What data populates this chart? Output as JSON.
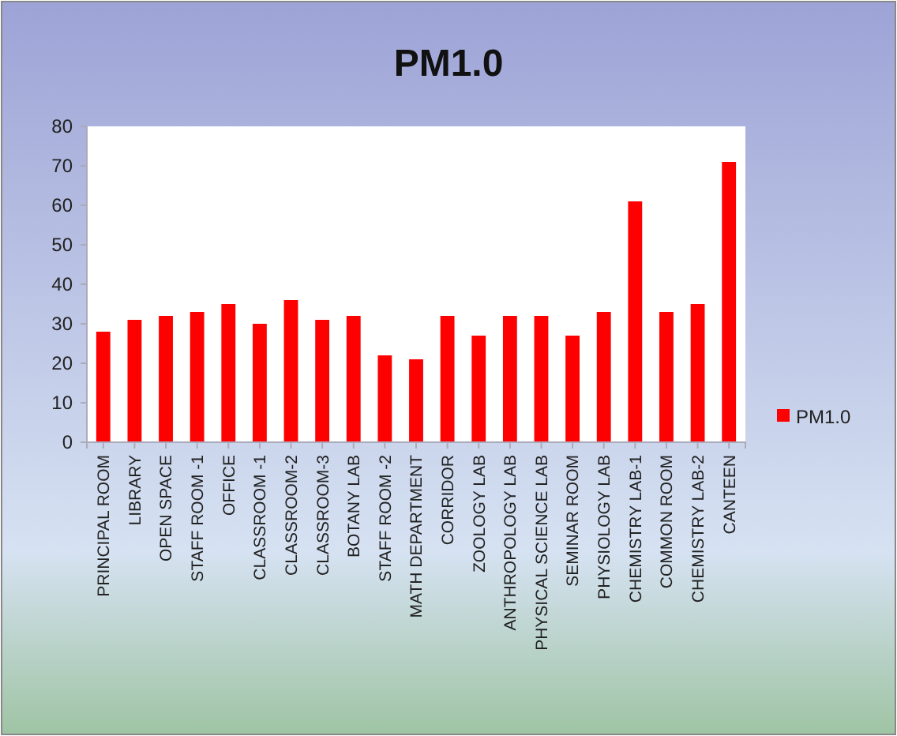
{
  "chart_data": {
    "type": "bar",
    "title": "PM1.0",
    "categories": [
      "PRINCIPAL ROOM",
      "LIBRARY",
      "OPEN SPACE",
      "STAFF ROOM -1",
      "OFFICE",
      "CLASSROOM -1",
      "CLASSROOM-2",
      "CLASSROOM-3",
      "BOTANY LAB",
      "STAFF ROOM -2",
      "MATH DEPARTMENT",
      "CORRIDOR",
      "ZOOLOGY LAB",
      "ANTHROPOLOGY LAB",
      "PHYSICAL SCIENCE LAB",
      "SEMINAR ROOM",
      "PHYSIOLOGY LAB",
      "CHEMISTRY LAB-1",
      "COMMON ROOM",
      "CHEMISTRY LAB-2",
      "CANTEEN"
    ],
    "series": [
      {
        "name": "PM1.0",
        "color": "#ff0000",
        "values": [
          28,
          31,
          32,
          33,
          35,
          30,
          36,
          31,
          32,
          22,
          21,
          32,
          27,
          32,
          32,
          27,
          33,
          61,
          33,
          35,
          71
        ]
      }
    ],
    "ylim": [
      0,
      80
    ],
    "yticks": [
      0,
      10,
      20,
      30,
      40,
      50,
      60,
      70,
      80
    ],
    "grid": false,
    "legend": "right"
  }
}
